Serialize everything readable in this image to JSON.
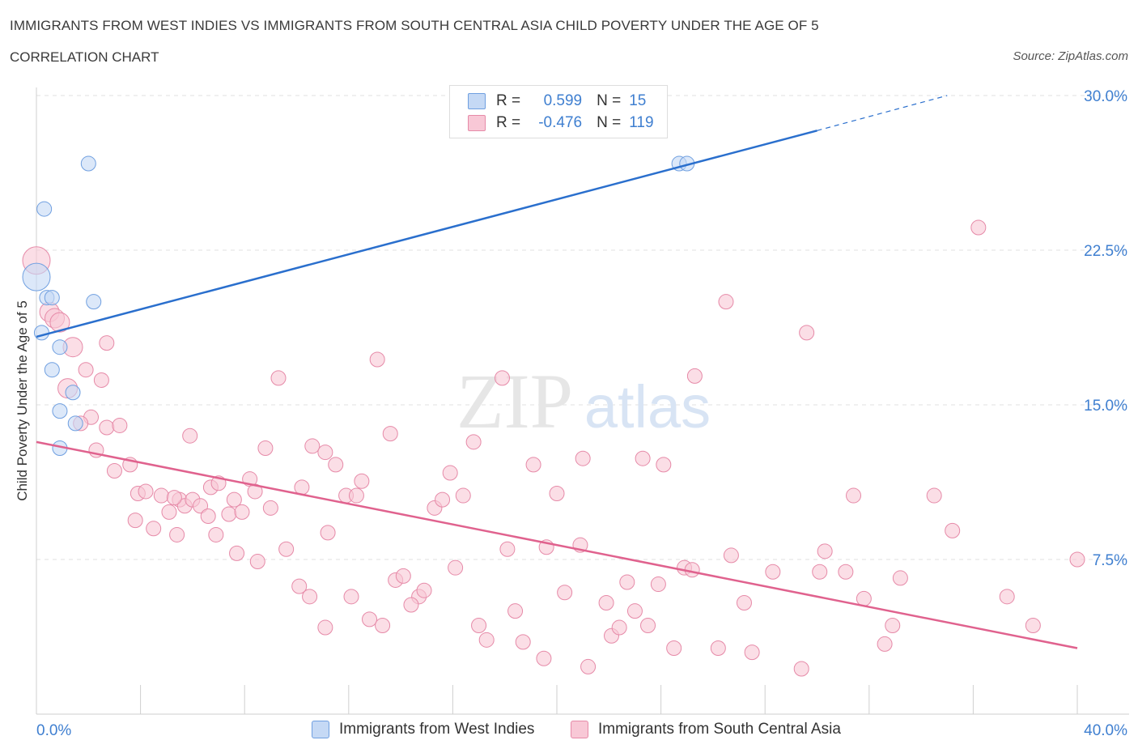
{
  "header": {
    "title": "IMMIGRANTS FROM WEST INDIES VS IMMIGRANTS FROM SOUTH CENTRAL ASIA CHILD POVERTY UNDER THE AGE OF 5",
    "subtitle": "CORRELATION CHART",
    "source": "Source: ZipAtlas.com"
  },
  "legend": {
    "r_label": "R =",
    "n_label": "N =",
    "west_indies": {
      "r": "0.599",
      "n": "15"
    },
    "south_central_asia": {
      "r": "-0.476",
      "n": "119"
    }
  },
  "colors": {
    "west_indies_fill": "#c5d9f5",
    "west_indies_stroke": "#6f9fe0",
    "west_indies_line": "#2a6fcd",
    "south_central_asia_fill": "#f8c8d6",
    "south_central_asia_stroke": "#e68aa8",
    "south_central_asia_line": "#e0628e",
    "tick_label": "#3f7fd0",
    "grid": "#e2e2e2"
  },
  "watermark": {
    "zip": "ZIP",
    "atlas": "atlas"
  },
  "chart_data": {
    "type": "scatter",
    "title": "IMMIGRANTS FROM WEST INDIES VS IMMIGRANTS FROM SOUTH CENTRAL ASIA CHILD POVERTY UNDER THE AGE OF 5",
    "xlabel": "",
    "ylabel": "Child Poverty Under the Age of 5",
    "xlim": [
      0,
      40
    ],
    "ylim": [
      0,
      30
    ],
    "x_tick_labels": [
      "0.0%",
      "40.0%"
    ],
    "y_ticks": [
      7.5,
      15.0,
      22.5,
      30.0
    ],
    "y_tick_labels": [
      "7.5%",
      "15.0%",
      "22.5%",
      "30.0%"
    ],
    "grid": "horizontal dashed",
    "legend_position": "top-center",
    "series": [
      {
        "name": "Immigrants from West Indies",
        "points": [
          [
            0.0,
            21.2
          ],
          [
            0.2,
            18.5
          ],
          [
            0.3,
            24.5
          ],
          [
            0.4,
            20.2
          ],
          [
            0.6,
            20.2
          ],
          [
            0.6,
            16.7
          ],
          [
            0.9,
            17.8
          ],
          [
            0.9,
            14.7
          ],
          [
            1.4,
            15.6
          ],
          [
            1.5,
            14.1
          ],
          [
            0.9,
            12.9
          ],
          [
            2.0,
            26.7
          ],
          [
            2.2,
            20.0
          ],
          [
            24.7,
            26.7
          ],
          [
            25.0,
            26.7
          ]
        ],
        "trend": {
          "x": [
            0.0,
            30.0
          ],
          "y": [
            18.3,
            28.3
          ],
          "dashed_extension": {
            "x": [
              30.0,
              35.0
            ],
            "y": [
              28.3,
              30.0
            ]
          }
        }
      },
      {
        "name": "Immigrants from South Central Asia",
        "points": [
          [
            0.0,
            22.0
          ],
          [
            0.5,
            19.5
          ],
          [
            0.7,
            19.2
          ],
          [
            0.9,
            19.0
          ],
          [
            1.4,
            17.8
          ],
          [
            1.2,
            15.8
          ],
          [
            1.9,
            16.7
          ],
          [
            2.5,
            16.2
          ],
          [
            2.7,
            18.0
          ],
          [
            2.1,
            14.4
          ],
          [
            1.7,
            14.1
          ],
          [
            2.3,
            12.8
          ],
          [
            2.7,
            13.9
          ],
          [
            3.2,
            14.0
          ],
          [
            3.0,
            11.8
          ],
          [
            3.6,
            12.1
          ],
          [
            3.9,
            10.7
          ],
          [
            4.2,
            10.8
          ],
          [
            3.8,
            9.4
          ],
          [
            4.5,
            9.0
          ],
          [
            4.8,
            10.6
          ],
          [
            5.1,
            9.8
          ],
          [
            5.5,
            10.4
          ],
          [
            5.7,
            10.1
          ],
          [
            5.9,
            13.5
          ],
          [
            5.3,
            10.5
          ],
          [
            6.0,
            10.4
          ],
          [
            6.3,
            10.1
          ],
          [
            5.4,
            8.7
          ],
          [
            6.6,
            9.6
          ],
          [
            6.9,
            8.7
          ],
          [
            6.7,
            11.0
          ],
          [
            7.0,
            11.2
          ],
          [
            7.4,
            9.7
          ],
          [
            7.6,
            10.4
          ],
          [
            7.7,
            7.8
          ],
          [
            7.9,
            9.8
          ],
          [
            8.2,
            11.4
          ],
          [
            8.4,
            10.8
          ],
          [
            8.8,
            12.9
          ],
          [
            8.5,
            7.4
          ],
          [
            9.0,
            10.0
          ],
          [
            9.3,
            16.3
          ],
          [
            9.6,
            8.0
          ],
          [
            10.2,
            11.0
          ],
          [
            10.1,
            6.2
          ],
          [
            10.6,
            13.0
          ],
          [
            11.1,
            12.7
          ],
          [
            10.5,
            5.7
          ],
          [
            11.5,
            12.1
          ],
          [
            11.2,
            8.8
          ],
          [
            11.9,
            10.6
          ],
          [
            12.5,
            11.3
          ],
          [
            11.1,
            4.2
          ],
          [
            12.3,
            10.6
          ],
          [
            13.1,
            17.2
          ],
          [
            13.6,
            13.6
          ],
          [
            12.1,
            5.7
          ],
          [
            12.8,
            4.6
          ],
          [
            13.8,
            6.5
          ],
          [
            14.1,
            6.7
          ],
          [
            14.7,
            5.7
          ],
          [
            14.9,
            6.0
          ],
          [
            14.4,
            5.3
          ],
          [
            13.3,
            4.3
          ],
          [
            15.3,
            10.0
          ],
          [
            15.6,
            10.4
          ],
          [
            15.9,
            11.7
          ],
          [
            16.4,
            10.6
          ],
          [
            16.1,
            7.1
          ],
          [
            16.8,
            13.2
          ],
          [
            17.0,
            4.3
          ],
          [
            17.3,
            3.6
          ],
          [
            17.9,
            16.3
          ],
          [
            18.1,
            8.0
          ],
          [
            18.7,
            3.5
          ],
          [
            18.4,
            5.0
          ],
          [
            19.1,
            12.1
          ],
          [
            19.6,
            8.1
          ],
          [
            20.0,
            10.7
          ],
          [
            19.5,
            2.7
          ],
          [
            20.3,
            5.9
          ],
          [
            21.0,
            12.4
          ],
          [
            21.2,
            2.3
          ],
          [
            20.9,
            8.2
          ],
          [
            21.9,
            5.4
          ],
          [
            22.1,
            3.8
          ],
          [
            22.7,
            6.4
          ],
          [
            22.4,
            4.2
          ],
          [
            23.3,
            12.4
          ],
          [
            23.0,
            5.0
          ],
          [
            24.1,
            12.1
          ],
          [
            23.5,
            4.3
          ],
          [
            23.9,
            6.3
          ],
          [
            24.5,
            3.2
          ],
          [
            25.3,
            16.4
          ],
          [
            24.9,
            7.1
          ],
          [
            25.2,
            7.0
          ],
          [
            26.5,
            20.0
          ],
          [
            26.2,
            3.2
          ],
          [
            26.7,
            7.7
          ],
          [
            27.5,
            3.0
          ],
          [
            27.2,
            5.4
          ],
          [
            28.3,
            6.9
          ],
          [
            29.6,
            18.5
          ],
          [
            29.4,
            2.2
          ],
          [
            30.1,
            6.9
          ],
          [
            30.3,
            7.9
          ],
          [
            31.4,
            10.6
          ],
          [
            31.1,
            6.9
          ],
          [
            31.8,
            5.6
          ],
          [
            32.6,
            3.4
          ],
          [
            32.9,
            4.3
          ],
          [
            33.2,
            6.6
          ],
          [
            34.5,
            10.6
          ],
          [
            35.2,
            8.9
          ],
          [
            36.2,
            23.6
          ],
          [
            37.3,
            5.7
          ],
          [
            38.3,
            4.3
          ],
          [
            40.0,
            7.5
          ]
        ],
        "trend": {
          "x": [
            0.0,
            40.0
          ],
          "y": [
            13.2,
            3.2
          ]
        }
      }
    ]
  }
}
